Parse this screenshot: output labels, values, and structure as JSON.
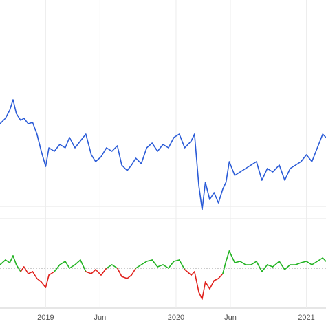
{
  "chart_data": [
    {
      "type": "line",
      "xlim": [
        -4.2,
        25.8
      ],
      "ylim": [
        0,
        230
      ],
      "series": [
        {
          "color": "#2a5bd7",
          "x": [
            -4.2,
            -3.7,
            -3.3,
            -3.0,
            -2.7,
            -2.3,
            -2.0,
            -1.6,
            -1.2,
            -0.8,
            -0.4,
            0,
            0.3,
            0.8,
            1.3,
            1.8,
            2.2,
            2.7,
            3.2,
            3.7,
            4.2,
            4.6,
            5.1,
            5.6,
            6.1,
            6.6,
            7.0,
            7.5,
            7.9,
            8.3,
            8.8,
            9.3,
            9.8,
            10.3,
            10.8,
            11.3,
            11.8,
            12.3,
            12.8,
            13.4,
            13.7,
            14.1,
            14.4,
            14.7,
            15.1,
            15.5,
            15.9,
            16.3,
            16.6,
            16.9,
            17.4,
            17.9,
            18.4,
            18.9,
            19.4,
            19.9,
            20.4,
            20.9,
            21.5,
            22.0,
            22.5,
            23.0,
            23.5,
            24.0,
            24.5,
            25.0,
            25.5,
            25.8
          ],
          "values": [
            150,
            158,
            170,
            185,
            165,
            155,
            158,
            150,
            152,
            135,
            110,
            88,
            115,
            110,
            120,
            115,
            130,
            115,
            125,
            135,
            105,
            95,
            102,
            115,
            110,
            118,
            90,
            82,
            90,
            100,
            92,
            115,
            122,
            110,
            120,
            115,
            130,
            135,
            115,
            125,
            135,
            60,
            25,
            65,
            40,
            50,
            35,
            55,
            65,
            95,
            75,
            80,
            85,
            90,
            95,
            68,
            85,
            80,
            90,
            68,
            85,
            90,
            95,
            105,
            95,
            115,
            135,
            130
          ]
        }
      ]
    },
    {
      "type": "signed-line",
      "xlim": [
        -4.2,
        25.8
      ],
      "ylim": [
        -60,
        40
      ],
      "xticks": [
        {
          "value": 0,
          "label": "2019"
        },
        {
          "value": 5,
          "label": "Jun"
        },
        {
          "value": 12,
          "label": "2020"
        },
        {
          "value": 17,
          "label": "Jun"
        },
        {
          "value": 24,
          "label": "2021"
        }
      ],
      "positive_color": "#22b322",
      "negative_color": "#e0201b",
      "x": [
        -4.2,
        -3.7,
        -3.3,
        -3.0,
        -2.7,
        -2.3,
        -2.0,
        -1.6,
        -1.2,
        -0.8,
        -0.4,
        0,
        0.3,
        0.8,
        1.3,
        1.8,
        2.2,
        2.7,
        3.2,
        3.7,
        4.2,
        4.6,
        5.1,
        5.6,
        6.1,
        6.6,
        7.0,
        7.5,
        7.9,
        8.3,
        8.8,
        9.3,
        9.8,
        10.3,
        10.8,
        11.3,
        11.8,
        12.3,
        12.8,
        13.4,
        13.7,
        14.1,
        14.4,
        14.7,
        15.1,
        15.5,
        15.9,
        16.3,
        16.6,
        16.9,
        17.4,
        17.9,
        18.4,
        18.9,
        19.4,
        19.9,
        20.4,
        20.9,
        21.5,
        22.0,
        22.5,
        23.0,
        23.5,
        24.0,
        24.5,
        25.0,
        25.5,
        25.8
      ],
      "values": [
        5,
        12,
        8,
        18,
        5,
        -5,
        2,
        -8,
        -5,
        -15,
        -20,
        -28,
        -10,
        -5,
        5,
        10,
        0,
        5,
        12,
        -5,
        -8,
        -2,
        -10,
        0,
        5,
        0,
        -12,
        -15,
        -10,
        0,
        5,
        10,
        12,
        2,
        5,
        0,
        10,
        12,
        -2,
        -10,
        -5,
        -35,
        -45,
        -20,
        -30,
        -18,
        -15,
        -8,
        10,
        25,
        8,
        10,
        5,
        5,
        10,
        -5,
        5,
        2,
        10,
        -2,
        5,
        5,
        8,
        10,
        5,
        10,
        15,
        10
      ]
    }
  ]
}
